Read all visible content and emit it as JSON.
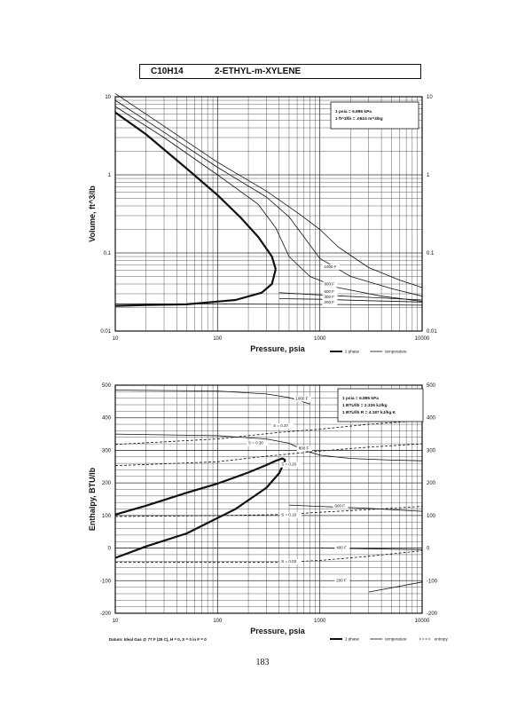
{
  "header": {
    "formula": "C10H14",
    "name": "2-ETHYL-m-XYLENE"
  },
  "page_number": "183",
  "footnote": "Datum: Ideal Gas @ 77 F (25 C), H = 0, S = 0 in F = 0",
  "chart_data": [
    {
      "type": "line",
      "xscale": "log",
      "yscale": "log",
      "xlabel": "Pressure,  psia",
      "ylabel": "Volume, ft^3/lb",
      "xlim": [
        10,
        10000
      ],
      "ylim": [
        0.01,
        10
      ],
      "x_ticks": [
        {
          "v": 10,
          "label": "10"
        },
        {
          "v": 100,
          "label": "100"
        },
        {
          "v": 1000,
          "label": "1000"
        },
        {
          "v": 10000,
          "label": "10000"
        }
      ],
      "y_ticks": [
        {
          "v": 10,
          "label": "10"
        },
        {
          "v": 1,
          "label": "1"
        },
        {
          "v": 0.1,
          "label": "0.1"
        },
        {
          "v": 0.01,
          "label": "0.01"
        }
      ],
      "grid": true,
      "note_lines": [
        "1 psia  =  6.895 kPa",
        "1 ft^3/lb  =  .0624 m^3/kg"
      ],
      "legend": [
        {
          "label": "2 phase",
          "style": "thick"
        },
        {
          "label": "temperature",
          "style": "thin"
        }
      ],
      "curve_labels": [
        {
          "text": "1000 F",
          "x": 1100,
          "y": 0.064
        },
        {
          "text": "800 F",
          "x": 1100,
          "y": 0.0385
        },
        {
          "text": "600 F",
          "x": 1100,
          "y": 0.031
        },
        {
          "text": "400 F",
          "x": 1100,
          "y": 0.0262
        },
        {
          "text": "200 F",
          "x": 1100,
          "y": 0.0226
        }
      ],
      "series": [
        {
          "style": "thick",
          "x": [
            10,
            20,
            50,
            100,
            170,
            250,
            340,
            370
          ],
          "y": [
            6.3,
            3.3,
            1.2,
            0.55,
            0.28,
            0.16,
            0.09,
            0.062
          ]
        },
        {
          "style": "thick",
          "x": [
            370,
            340,
            270,
            150,
            50,
            20,
            10
          ],
          "y": [
            0.062,
            0.04,
            0.031,
            0.025,
            0.022,
            0.0215,
            0.021
          ]
        },
        {
          "style": "thin",
          "x": [
            10,
            30,
            100,
            250,
            370,
            500,
            800,
            1500,
            4000,
            10000
          ],
          "y": [
            7.5,
            3.0,
            1.0,
            0.42,
            0.21,
            0.09,
            0.05,
            0.036,
            0.028,
            0.024
          ]
        },
        {
          "style": "thin",
          "x": [
            10,
            30,
            100,
            300,
            500,
            700,
            1000,
            2000,
            5000,
            10000
          ],
          "y": [
            9.0,
            3.5,
            1.25,
            0.52,
            0.29,
            0.16,
            0.085,
            0.05,
            0.035,
            0.028
          ]
        },
        {
          "style": "thin",
          "x": [
            10,
            30,
            100,
            300,
            600,
            1000,
            1500,
            3000,
            6000,
            10000
          ],
          "y": [
            11,
            4.2,
            1.45,
            0.62,
            0.33,
            0.2,
            0.12,
            0.065,
            0.045,
            0.036
          ]
        },
        {
          "style": "thin",
          "x": [
            400,
            1000,
            3000,
            10000
          ],
          "y": [
            0.031,
            0.029,
            0.027,
            0.025
          ]
        },
        {
          "style": "thin",
          "x": [
            400,
            1000,
            3000,
            10000
          ],
          "y": [
            0.026,
            0.0255,
            0.0245,
            0.0235
          ]
        },
        {
          "style": "thin",
          "x": [
            10,
            100,
            1000,
            10000
          ],
          "y": [
            0.0223,
            0.0222,
            0.0219,
            0.0214
          ]
        }
      ]
    },
    {
      "type": "line",
      "xscale": "log",
      "yscale": "linear",
      "xlabel": "Pressure,  psia",
      "ylabel": "Enthalpy, BTU/lb",
      "xlim": [
        10,
        10000
      ],
      "ylim": [
        -200,
        500
      ],
      "x_ticks": [
        {
          "v": 10,
          "label": "10"
        },
        {
          "v": 100,
          "label": "100"
        },
        {
          "v": 1000,
          "label": "1000"
        },
        {
          "v": 10000,
          "label": "10000"
        }
      ],
      "y_ticks": [
        {
          "v": 500,
          "label": "500"
        },
        {
          "v": 400,
          "label": "400"
        },
        {
          "v": 300,
          "label": "300"
        },
        {
          "v": 200,
          "label": "200"
        },
        {
          "v": 100,
          "label": "100"
        },
        {
          "v": 0,
          "label": "0"
        },
        {
          "v": -100,
          "label": "-100"
        },
        {
          "v": -200,
          "label": "-200"
        }
      ],
      "grid": true,
      "note_lines": [
        "1 psia  =  6.895 kPa",
        "1 BTU/lb  =  2.326 kJ/kg",
        "1 BTU/lb R  =  4.187 kJ/kg K"
      ],
      "legend": [
        {
          "label": "2 phase",
          "style": "thick"
        },
        {
          "label": "temperature",
          "style": "thin"
        },
        {
          "label": "entropy",
          "style": "dashed"
        }
      ],
      "curve_labels": [
        {
          "text": "1000 F",
          "x": 580,
          "y": 455
        },
        {
          "text": "S = 0.37",
          "x": 350,
          "y": 372
        },
        {
          "text": "S = 0.30",
          "x": 200,
          "y": 319
        },
        {
          "text": "800 F",
          "x": 620,
          "y": 303
        },
        {
          "text": "S = 0.20",
          "x": 420,
          "y": 253
        },
        {
          "text": "600 F",
          "x": 1400,
          "y": 126
        },
        {
          "text": "S = 0.10",
          "x": 420,
          "y": 98
        },
        {
          "text": "400 F",
          "x": 1450,
          "y": -2
        },
        {
          "text": "S = 0.03",
          "x": 420,
          "y": -45
        },
        {
          "text": "200 F",
          "x": 1450,
          "y": -103
        }
      ],
      "series": [
        {
          "style": "thick",
          "x": [
            10,
            20,
            50,
            100,
            200,
            300,
            370,
            430,
            460
          ],
          "y": [
            103,
            130,
            170,
            198,
            232,
            255,
            268,
            275,
            270
          ]
        },
        {
          "style": "thick",
          "x": [
            460,
            400,
            300,
            150,
            50,
            20,
            10
          ],
          "y": [
            270,
            230,
            185,
            120,
            45,
            5,
            -30
          ]
        },
        {
          "style": "thin",
          "x": [
            10,
            100,
            300,
            500,
            800
          ],
          "y": [
            485,
            482,
            473,
            462,
            442
          ]
        },
        {
          "style": "thin",
          "x": [
            10,
            100,
            300,
            500,
            700,
            1000,
            2000,
            5000,
            10000
          ],
          "y": [
            350,
            345,
            335,
            322,
            300,
            285,
            275,
            270,
            268
          ]
        },
        {
          "style": "thin",
          "x": [
            500,
            1000,
            3000,
            10000
          ],
          "y": [
            132,
            128,
            122,
            113
          ]
        },
        {
          "style": "thin",
          "x": [
            1000,
            3000,
            10000
          ],
          "y": [
            0,
            -2,
            -5
          ]
        },
        {
          "style": "thin",
          "x": [
            3000,
            10000
          ],
          "y": [
            -135,
            -104
          ]
        },
        {
          "style": "dashed",
          "x": [
            10,
            100,
            400,
            1000,
            3000,
            10000
          ],
          "y": [
            318,
            335,
            355,
            365,
            380,
            392
          ]
        },
        {
          "style": "dashed",
          "x": [
            10,
            100,
            300,
            1000,
            3000,
            10000
          ],
          "y": [
            253,
            265,
            282,
            298,
            310,
            320
          ]
        },
        {
          "style": "dashed",
          "x": [
            10,
            100,
            400,
            1000,
            3000,
            10000
          ],
          "y": [
            97,
            100,
            103,
            110,
            118,
            128
          ]
        },
        {
          "style": "dashed",
          "x": [
            10,
            100,
            400,
            1000,
            3000,
            10000
          ],
          "y": [
            -44,
            -44,
            -44,
            -38,
            -25,
            -8
          ]
        }
      ]
    }
  ]
}
